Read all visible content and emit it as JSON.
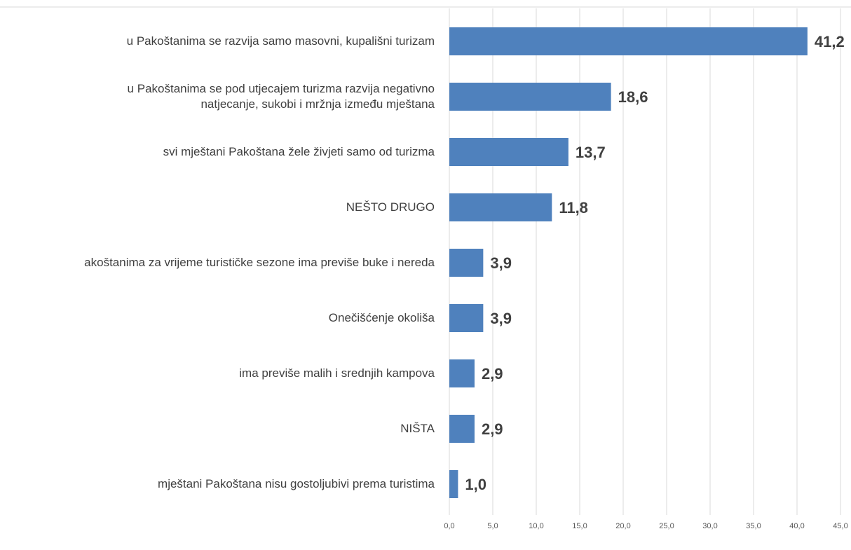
{
  "chart_data": {
    "type": "bar",
    "orientation": "horizontal",
    "categories": [
      "u Pakoštanima se razvija samo masovni, kupališni turizam",
      "u Pakoštanima se pod utjecajem turizma razvija negativno\nnatjecanje, sukobi i mržnja između mještana",
      "svi mještani Pakoštana žele živjeti samo od turizma",
      "NEŠTO DRUGO",
      "akoštanima za vrijeme turističke sezone ima previše buke i nereda",
      "Onečišćenje okoliša",
      "ima previše malih i srednjih kampova",
      "NIŠTA",
      "mještani Pakoštana nisu gostoljubivi prema turistima"
    ],
    "values": [
      41.2,
      18.6,
      13.7,
      11.8,
      3.9,
      3.9,
      2.9,
      2.9,
      1.0
    ],
    "value_labels": [
      "41,2",
      "18,6",
      "13,7",
      "11,8",
      "3,9",
      "3,9",
      "2,9",
      "2,9",
      "1,0"
    ],
    "color": "#4f81bd",
    "xlim": [
      0,
      45
    ],
    "xticks": [
      {
        "value": 0,
        "label": "0,0"
      },
      {
        "value": 5,
        "label": "5,0"
      },
      {
        "value": 10,
        "label": "10,0"
      },
      {
        "value": 15,
        "label": "15,0"
      },
      {
        "value": 20,
        "label": "20,0"
      },
      {
        "value": 25,
        "label": "25,0"
      },
      {
        "value": 30,
        "label": "30,0"
      },
      {
        "value": 35,
        "label": "35,0"
      },
      {
        "value": 40,
        "label": "40,0"
      },
      {
        "value": 45,
        "label": "45,0"
      }
    ],
    "grid": true
  }
}
